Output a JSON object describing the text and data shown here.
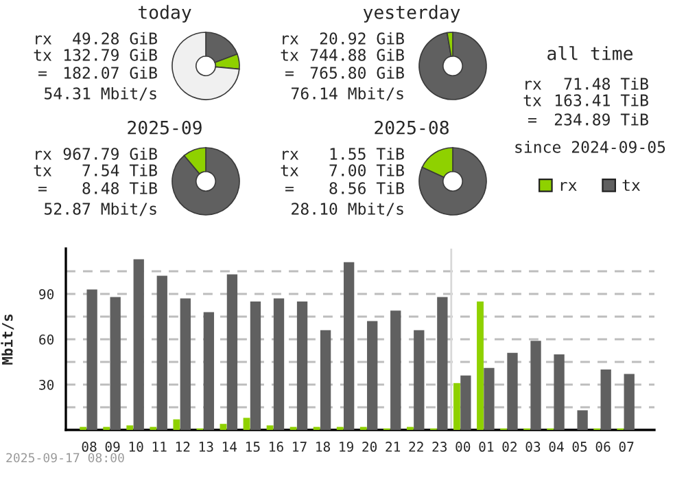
{
  "chart_data": [
    {
      "type": "donut",
      "title": "today",
      "categories": [
        null,
        null,
        null
      ],
      "values": [
        19.3,
        7.2,
        73.5
      ],
      "colors": [
        "#606060",
        "#8fd100",
        "#f0f0f0"
      ],
      "annotations": [
        "rx",
        "49.28 GiB",
        "tx",
        "132.79 GiB",
        "=",
        "182.07 GiB",
        "54.31 Mbit/s"
      ]
    },
    {
      "type": "donut",
      "title": "yesterday",
      "categories": [
        null,
        null
      ],
      "values": [
        97.3,
        2.7
      ],
      "colors": [
        "#606060",
        "#8fd100"
      ],
      "annotations": [
        "rx",
        "20.92 GiB",
        "tx",
        "744.88 GiB",
        "=",
        "765.80 GiB",
        "76.14 Mbit/s"
      ]
    },
    {
      "type": "other",
      "title": "all time",
      "annotations": [
        "rx",
        "71.48 TiB",
        "tx",
        "163.41 TiB",
        "=",
        "234.89 TiB",
        "since 2024-09-05"
      ]
    },
    {
      "type": "donut",
      "title": "2025-09",
      "categories": [
        null,
        null
      ],
      "values": [
        88.9,
        11.1
      ],
      "colors": [
        "#606060",
        "#8fd100"
      ],
      "annotations": [
        "rx",
        "967.79 GiB",
        "tx",
        "7.54 TiB",
        "=",
        "8.48 TiB",
        "52.87 Mbit/s"
      ]
    },
    {
      "type": "donut",
      "title": "2025-08",
      "categories": [
        null,
        null
      ],
      "values": [
        81.9,
        18.1
      ],
      "colors": [
        "#606060",
        "#8fd100"
      ],
      "annotations": [
        "rx",
        "1.55 TiB",
        "tx",
        "7.00 TiB",
        "=",
        "8.56 TiB",
        "28.10 Mbit/s"
      ]
    },
    {
      "type": "bar",
      "ylabel": "Mbit/s",
      "categories": [
        "08",
        "09",
        "10",
        "11",
        "12",
        "13",
        "14",
        "15",
        "16",
        "17",
        "18",
        "19",
        "20",
        "21",
        "22",
        "23",
        "00",
        "01",
        "02",
        "03",
        "04",
        "05",
        "06",
        "07"
      ],
      "series": [
        {
          "name": "rx",
          "color": "#8fd100",
          "values": [
            2,
            2,
            3,
            2,
            7,
            1,
            4,
            8,
            3,
            2,
            2,
            2,
            2,
            1,
            2,
            1,
            31,
            85,
            1,
            1,
            1,
            0,
            1,
            1
          ]
        },
        {
          "name": "tx",
          "color": "#606060",
          "values": [
            93,
            88,
            113,
            102,
            87,
            78,
            103,
            85,
            87,
            85,
            66,
            111,
            72,
            79,
            66,
            88,
            36,
            41,
            51,
            59,
            50,
            13,
            40,
            37
          ]
        }
      ],
      "ylim": [
        0,
        120
      ],
      "yticks": [
        {
          "value": 15,
          "label": null
        },
        30,
        {
          "value": 45,
          "label": null
        },
        60,
        {
          "value": 75,
          "label": null
        },
        90,
        {
          "value": 105,
          "label": null
        }
      ],
      "grid": "y",
      "legend": "top right",
      "ref_lines": [
        {
          "axis": "x",
          "value": "00",
          "label": null,
          "color": "#d8d8d8"
        }
      ],
      "annotations": [
        "2025-09-17 08:00"
      ]
    }
  ]
}
